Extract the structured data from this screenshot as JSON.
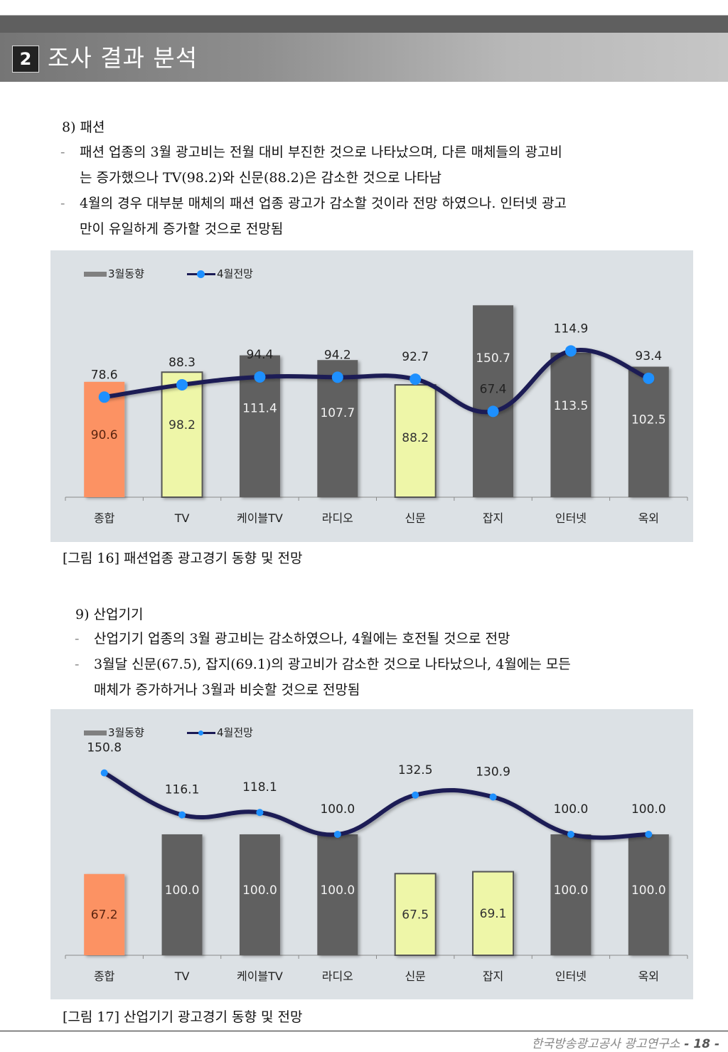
{
  "header": {
    "section_number": "2",
    "section_title": "조사 결과 분석"
  },
  "sections": [
    {
      "title": "8) 패션",
      "bullets": [
        {
          "line1": "패션 업종의 3월 광고비는 전월 대비 부진한 것으로 나타났으며, 다른 매체들의 광고비",
          "line2": "는 증가했으나 TV(98.2)와 신문(88.2)은 감소한 것으로 나타남"
        },
        {
          "line1": "4월의 경우 대부분 매체의 패션 업종 광고가 감소할 것이라 전망 하였으나. 인터넷 광고",
          "line2": "만이 유일하게 증가할 것으로 전망됨"
        }
      ],
      "caption": "[그림 16] 패션업종 광고경기 동향 및 전망"
    },
    {
      "title": "9) 산업기기",
      "bullets": [
        {
          "line1": "산업기기 업종의 3월 광고비는 감소하였으나, 4월에는 호전될 것으로 전망",
          "line2": ""
        },
        {
          "line1": "3월달 신문(67.5), 잡지(69.1)의 광고비가 감소한 것으로 나타났으나, 4월에는 모든",
          "line2": "매체가 증가하거나 3월과 비슷할 것으로 전망됨"
        }
      ],
      "caption": "[그림 17] 산업기기 광고경기 동향 및 전망"
    }
  ],
  "bullet_dash": "-",
  "chart_data": [
    {
      "type": "bar",
      "title": "패션업종 광고경기 동향 및 전망",
      "categories": [
        "종합",
        "TV",
        "케이블TV",
        "라디오",
        "신문",
        "잡지",
        "인터넷",
        "옥외"
      ],
      "series": [
        {
          "name": "3월동향",
          "kind": "bar",
          "values": [
            90.6,
            98.2,
            111.4,
            107.7,
            88.2,
            150.7,
            113.5,
            102.5
          ]
        },
        {
          "name": "4월전망",
          "kind": "line",
          "values": [
            78.6,
            88.3,
            94.4,
            94.2,
            92.7,
            67.4,
            114.9,
            93.4
          ]
        }
      ],
      "bar_colors": [
        "#fc9263",
        "#eef6a8",
        "#606060",
        "#606060",
        "#eef6a8",
        "#606060",
        "#606060",
        "#606060"
      ],
      "line_color": "#1b1b55",
      "marker_color": "#1e90ff",
      "legend": [
        "3월동향",
        "4월전망"
      ],
      "legend_position": "top-left",
      "xlabel": "",
      "ylabel": "",
      "ylim": [
        0,
        160
      ],
      "grid": false
    },
    {
      "type": "bar",
      "title": "산업기기 광고경기 동향 및 전망",
      "categories": [
        "종합",
        "TV",
        "케이블TV",
        "라디오",
        "신문",
        "잡지",
        "인터넷",
        "옥외"
      ],
      "series": [
        {
          "name": "3월동향",
          "kind": "bar",
          "values": [
            67.2,
            100.0,
            100.0,
            100.0,
            67.5,
            69.1,
            100.0,
            100.0
          ]
        },
        {
          "name": "4월전망",
          "kind": "line",
          "values": [
            150.8,
            116.1,
            118.1,
            100.0,
            132.5,
            130.9,
            100.0,
            100.0
          ]
        }
      ],
      "bar_colors": [
        "#fc9263",
        "#606060",
        "#606060",
        "#606060",
        "#eef6a8",
        "#eef6a8",
        "#606060",
        "#606060"
      ],
      "line_color": "#1b1b55",
      "marker_color": "#1e90ff",
      "legend": [
        "3월동향",
        "4월전망"
      ],
      "legend_position": "top-left",
      "xlabel": "",
      "ylabel": "",
      "ylim": [
        0,
        170
      ],
      "grid": false
    }
  ],
  "footer": {
    "org": "한국방송광고공사 광고연구소",
    "page": "- 18 -"
  }
}
